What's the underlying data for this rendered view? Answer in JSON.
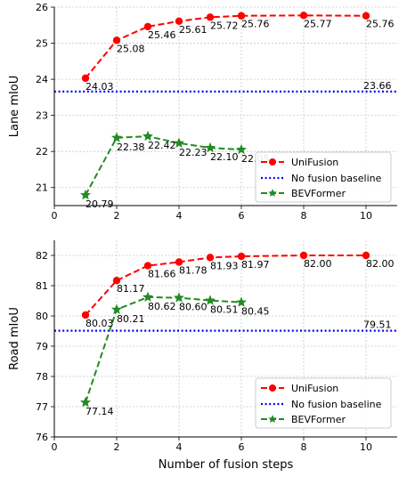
{
  "chart_data": [
    {
      "type": "line",
      "xlabel": "",
      "ylabel": "Lane mIoU",
      "xlim": [
        0,
        11
      ],
      "ylim": [
        20.5,
        26
      ],
      "xticks": [
        0,
        2,
        4,
        6,
        8,
        10
      ],
      "yticks": [
        21,
        22,
        23,
        24,
        25,
        26
      ],
      "grid": true,
      "legend_position": "lower-right",
      "series": [
        {
          "name": "UniFusion",
          "color": "#ff0000",
          "marker": "circle",
          "x": [
            1,
            2,
            3,
            4,
            5,
            6,
            8,
            10
          ],
          "y": [
            24.03,
            25.08,
            25.46,
            25.61,
            25.72,
            25.76,
            25.77,
            25.76
          ],
          "labels": [
            "24.03",
            "25.08",
            "25.46",
            "25.61",
            "25.72",
            "25.76",
            "25.77",
            "25.76"
          ]
        },
        {
          "name": "No fusion baseline",
          "color": "#0000ff",
          "marker": "none",
          "y": 23.66,
          "label": "23.66"
        },
        {
          "name": "BEVFormer",
          "color": "#228b22",
          "marker": "star",
          "x": [
            1,
            2,
            3,
            4,
            5,
            6
          ],
          "y": [
            20.79,
            22.38,
            22.42,
            22.23,
            22.1,
            22.05
          ],
          "labels": [
            "20.79",
            "22.38",
            "22.42",
            "22.23",
            "22.10",
            "22.05"
          ]
        }
      ]
    },
    {
      "type": "line",
      "xlabel": "Number of fusion steps",
      "ylabel": "Road mIoU",
      "xlim": [
        0,
        11
      ],
      "ylim": [
        76,
        82.5
      ],
      "xticks": [
        0,
        2,
        4,
        6,
        8,
        10
      ],
      "yticks": [
        76,
        77,
        78,
        79,
        80,
        81,
        82
      ],
      "grid": true,
      "legend_position": "lower-right",
      "series": [
        {
          "name": "UniFusion",
          "color": "#ff0000",
          "marker": "circle",
          "x": [
            1,
            2,
            3,
            4,
            5,
            6,
            8,
            10
          ],
          "y": [
            80.03,
            81.17,
            81.66,
            81.78,
            81.93,
            81.97,
            82.0,
            82.0
          ],
          "labels": [
            "80.03",
            "81.17",
            "81.66",
            "81.78",
            "81.93",
            "81.97",
            "82.00",
            "82.00"
          ]
        },
        {
          "name": "No fusion baseline",
          "color": "#0000ff",
          "marker": "none",
          "y": 79.51,
          "label": "79.51"
        },
        {
          "name": "BEVFormer",
          "color": "#228b22",
          "marker": "star",
          "x": [
            1,
            2,
            3,
            4,
            5,
            6
          ],
          "y": [
            77.14,
            80.21,
            80.62,
            80.6,
            80.51,
            80.45
          ],
          "labels": [
            "77.14",
            "80.21",
            "80.62",
            "80.60",
            "80.51",
            "80.45"
          ]
        }
      ]
    }
  ]
}
